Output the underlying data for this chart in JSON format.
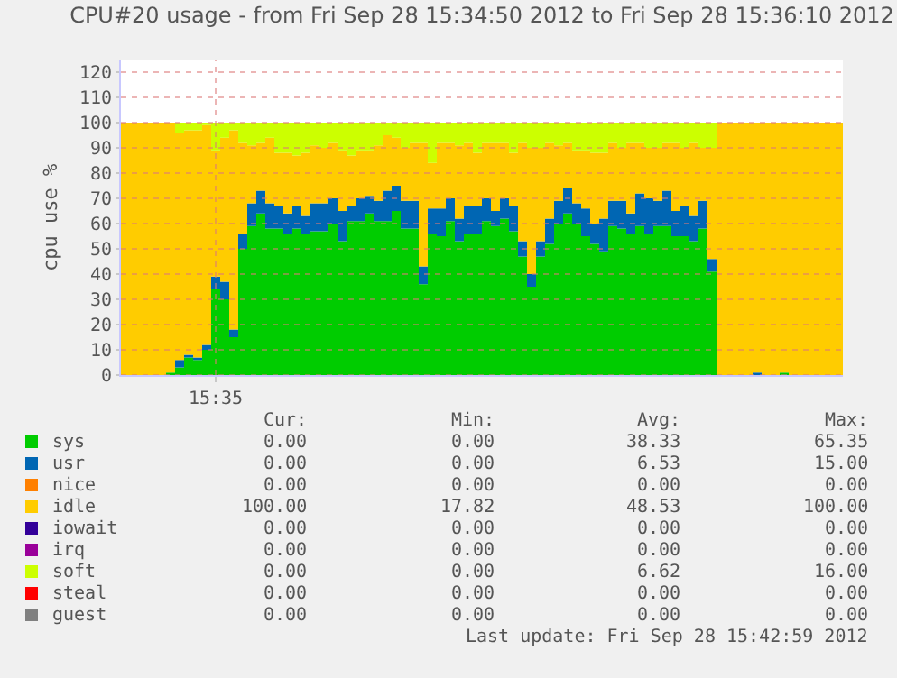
{
  "chart_data": {
    "type": "area",
    "stacked": true,
    "title": "CPU#20 usage - from Fri Sep 28 15:34:50 2012 to Fri Sep 28 15:36:10 2012",
    "ylabel": "cpu use %",
    "categories": [
      null,
      null,
      null,
      null,
      null,
      null,
      null,
      null,
      null,
      null,
      "15:35",
      null,
      null,
      null,
      null,
      null,
      null,
      null,
      null,
      null,
      null,
      null,
      null,
      null,
      null,
      null,
      null,
      null,
      null,
      null,
      null,
      null,
      null,
      null,
      null,
      null,
      null,
      null,
      null,
      null,
      null,
      null,
      null,
      null,
      null,
      null,
      null,
      null,
      null,
      null,
      null,
      null,
      null,
      null,
      null,
      null,
      null,
      null,
      null,
      null,
      null,
      null,
      null,
      null,
      null,
      null,
      null,
      null,
      null,
      null,
      null,
      null,
      null,
      null,
      null,
      null,
      null,
      null,
      null,
      null
    ],
    "series": [
      {
        "name": "sys",
        "color": "#00cc00",
        "values": [
          0,
          0,
          0,
          0,
          0,
          1,
          3,
          7,
          6,
          10,
          34,
          30,
          15,
          50,
          59,
          64,
          58,
          58,
          56,
          58,
          56,
          57,
          57,
          60,
          53,
          61,
          61,
          64,
          61,
          61,
          65,
          58,
          58,
          36,
          56,
          55,
          61,
          53,
          56,
          56,
          61,
          59,
          62,
          57,
          47,
          35,
          47,
          52,
          60,
          64,
          60,
          55,
          52,
          49,
          59,
          58,
          56,
          59,
          56,
          59,
          59,
          55,
          55,
          53,
          58,
          41,
          0,
          0,
          0,
          0,
          0,
          0,
          0,
          1,
          0,
          0,
          0,
          0,
          0,
          0
        ]
      },
      {
        "name": "usr",
        "color": "#0066b3",
        "values": [
          0,
          0,
          0,
          0,
          0,
          0,
          3,
          1,
          1,
          2,
          5,
          7,
          3,
          6,
          9,
          9,
          10,
          9,
          8,
          9,
          7,
          11,
          11,
          10,
          12,
          6,
          9,
          7,
          8,
          12,
          10,
          11,
          11,
          7,
          10,
          11,
          9,
          9,
          11,
          11,
          9,
          6,
          8,
          10,
          6,
          5,
          6,
          10,
          9,
          10,
          8,
          11,
          8,
          13,
          10,
          11,
          8,
          13,
          14,
          10,
          14,
          10,
          12,
          10,
          11,
          5,
          0,
          0,
          0,
          0,
          1,
          0,
          0,
          0,
          0,
          0,
          0,
          0,
          0,
          0
        ]
      },
      {
        "name": "nice",
        "color": "#ff8000",
        "values": [
          null,
          null,
          null,
          null,
          null,
          null,
          null,
          null,
          null,
          null,
          null,
          null,
          null,
          null,
          null,
          null,
          null,
          null,
          null,
          null,
          null,
          null,
          null,
          null,
          null,
          null,
          null,
          null,
          null,
          null,
          null,
          null,
          null,
          null,
          null,
          null,
          null,
          null,
          null,
          null,
          null,
          null,
          null,
          null,
          null,
          null,
          null,
          null,
          null,
          null,
          null,
          null,
          null,
          null,
          null,
          null,
          null,
          null,
          null,
          null,
          null,
          null,
          null,
          null,
          null,
          null,
          null,
          null,
          null,
          null,
          null,
          null,
          null,
          null,
          null,
          null,
          null,
          null,
          null,
          null
        ]
      },
      {
        "name": "idle",
        "color": "#ffcc00",
        "values": [
          100,
          100,
          100,
          100,
          100,
          99,
          90,
          89,
          90,
          87,
          50,
          57,
          79,
          36,
          23,
          19,
          26,
          21,
          24,
          20,
          25,
          23,
          22,
          22,
          24,
          20,
          19,
          18,
          22,
          22,
          19,
          21,
          23,
          49,
          18,
          26,
          22,
          29,
          25,
          21,
          22,
          27,
          22,
          21,
          39,
          50,
          37,
          30,
          22,
          18,
          21,
          23,
          28,
          26,
          23,
          21,
          28,
          20,
          20,
          21,
          19,
          27,
          23,
          29,
          21,
          44,
          100,
          100,
          100,
          100,
          99,
          100,
          100,
          99,
          100,
          100,
          100,
          100,
          100,
          100
        ]
      },
      {
        "name": "iowait",
        "color": "#330099",
        "values": [
          null,
          null,
          null,
          null,
          null,
          null,
          null,
          null,
          null,
          null,
          null,
          null,
          null,
          null,
          null,
          null,
          null,
          null,
          null,
          null,
          null,
          null,
          null,
          null,
          null,
          null,
          null,
          null,
          null,
          null,
          null,
          null,
          null,
          null,
          null,
          null,
          null,
          null,
          null,
          null,
          null,
          null,
          null,
          null,
          null,
          null,
          null,
          null,
          null,
          null,
          null,
          null,
          null,
          null,
          null,
          null,
          null,
          null,
          null,
          null,
          null,
          null,
          null,
          null,
          null,
          null,
          null,
          null,
          null,
          null,
          null,
          null,
          null,
          null,
          null,
          null,
          null,
          null,
          null,
          null
        ]
      },
      {
        "name": "irq",
        "color": "#990099",
        "values": [
          null,
          null,
          null,
          null,
          null,
          null,
          null,
          null,
          null,
          null,
          null,
          null,
          null,
          null,
          null,
          null,
          null,
          null,
          null,
          null,
          null,
          null,
          null,
          null,
          null,
          null,
          null,
          null,
          null,
          null,
          null,
          null,
          null,
          null,
          null,
          null,
          null,
          null,
          null,
          null,
          null,
          null,
          null,
          null,
          null,
          null,
          null,
          null,
          null,
          null,
          null,
          null,
          null,
          null,
          null,
          null,
          null,
          null,
          null,
          null,
          null,
          null,
          null,
          null,
          null,
          null,
          null,
          null,
          null,
          null,
          null,
          null,
          null,
          null,
          null,
          null,
          null,
          null,
          null,
          null
        ]
      },
      {
        "name": "soft",
        "color": "#ccff00",
        "values": [
          0,
          0,
          0,
          0,
          0,
          0,
          4,
          3,
          3,
          1,
          11,
          6,
          3,
          8,
          9,
          8,
          6,
          12,
          12,
          13,
          12,
          9,
          10,
          8,
          11,
          13,
          11,
          11,
          9,
          5,
          6,
          10,
          8,
          8,
          16,
          8,
          8,
          9,
          8,
          12,
          8,
          8,
          8,
          12,
          8,
          10,
          10,
          8,
          9,
          8,
          11,
          11,
          12,
          12,
          8,
          10,
          8,
          8,
          10,
          10,
          8,
          8,
          10,
          8,
          10,
          10,
          0,
          0,
          0,
          0,
          0,
          0,
          0,
          0,
          0,
          0,
          0,
          0,
          0,
          0
        ]
      },
      {
        "name": "steal",
        "color": "#ff0000",
        "values": [
          null,
          null,
          null,
          null,
          null,
          null,
          null,
          null,
          null,
          null,
          null,
          null,
          null,
          null,
          null,
          null,
          null,
          null,
          null,
          null,
          null,
          null,
          null,
          null,
          null,
          null,
          null,
          null,
          null,
          null,
          null,
          null,
          null,
          null,
          null,
          null,
          null,
          null,
          null,
          null,
          null,
          null,
          null,
          null,
          null,
          null,
          null,
          null,
          null,
          null,
          null,
          null,
          null,
          null,
          null,
          null,
          null,
          null,
          null,
          null,
          null,
          null,
          null,
          null,
          null,
          null,
          null,
          null,
          null,
          null,
          null,
          null,
          null,
          null,
          null,
          null,
          null,
          null,
          null,
          null
        ]
      },
      {
        "name": "guest",
        "color": "#808080",
        "values": [
          null,
          null,
          null,
          null,
          null,
          null,
          null,
          null,
          null,
          null,
          null,
          null,
          null,
          null,
          null,
          null,
          null,
          null,
          null,
          null,
          null,
          null,
          null,
          null,
          null,
          null,
          null,
          null,
          null,
          null,
          null,
          null,
          null,
          null,
          null,
          null,
          null,
          null,
          null,
          null,
          null,
          null,
          null,
          null,
          null,
          null,
          null,
          null,
          null,
          null,
          null,
          null,
          null,
          null,
          null,
          null,
          null,
          null,
          null,
          null,
          null,
          null,
          null,
          null,
          null,
          null,
          null,
          null,
          null,
          null,
          null,
          null,
          null,
          null,
          null,
          null,
          null,
          null,
          null,
          null
        ]
      }
    ],
    "ylim": [
      0,
      125
    ],
    "yticks": [
      0,
      10,
      20,
      30,
      40,
      50,
      60,
      70,
      80,
      90,
      100,
      110,
      120
    ],
    "grid": true,
    "legend": "bottom",
    "annotations": [
      "Cur:",
      "Min:",
      "Avg:",
      "Max:",
      "0.00",
      "0.00",
      "38.33",
      "65.35",
      "0.00",
      "0.00",
      "6.53",
      "15.00",
      "0.00",
      "0.00",
      "0.00",
      "0.00",
      "100.00",
      "17.82",
      "48.53",
      "100.00",
      "0.00",
      "0.00",
      "0.00",
      "0.00",
      "0.00",
      "0.00",
      "0.00",
      "0.00",
      "0.00",
      "0.00",
      "6.62",
      "16.00",
      "0.00",
      "0.00",
      "0.00",
      "0.00",
      "0.00",
      "0.00",
      "0.00",
      "0.00",
      "Last update: Fri Sep 28 15:42:59 2012"
    ]
  }
}
